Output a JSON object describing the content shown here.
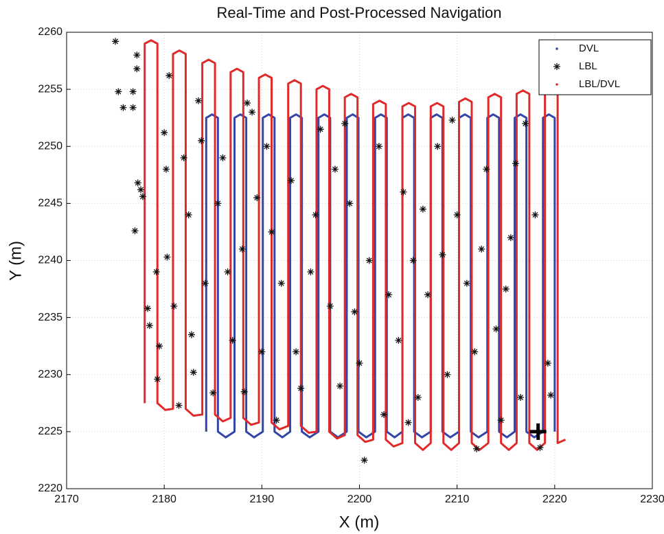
{
  "chart_data": {
    "type": "line",
    "title": "Real-Time and Post-Processed Navigation",
    "x_label": "X (m)",
    "y_label": "Y (m)",
    "xlim": [
      2170,
      2230
    ],
    "ylim": [
      2220,
      2260
    ],
    "xticks": [
      2170,
      2180,
      2190,
      2200,
      2210,
      2220,
      2230
    ],
    "yticks": [
      2220,
      2225,
      2230,
      2235,
      2240,
      2245,
      2250,
      2255,
      2260
    ],
    "grid": true,
    "legend_position": "top-right",
    "series": [
      {
        "name": "DVL",
        "type": "line",
        "marker": "dot",
        "color": "#3346a8",
        "x": [
          2184.3,
          2184.3,
          2184.9,
          2185.5,
          2185.5,
          2186.3,
          2187.2,
          2187.2,
          2187.8,
          2188.4,
          2188.4,
          2189.2,
          2190.1,
          2190.1,
          2190.7,
          2191.3,
          2191.3,
          2192.1,
          2192.9,
          2192.9,
          2193.5,
          2194.1,
          2194.1,
          2194.9,
          2195.8,
          2195.8,
          2196.4,
          2197,
          2197,
          2197.8,
          2198.7,
          2198.7,
          2199.3,
          2199.9,
          2199.9,
          2200.7,
          2201.6,
          2201.6,
          2202.2,
          2202.8,
          2202.8,
          2203.6,
          2204.4,
          2204.4,
          2205,
          2205.6,
          2205.6,
          2206.4,
          2207.3,
          2207.3,
          2207.9,
          2208.5,
          2208.5,
          2209.3,
          2210.2,
          2210.2,
          2210.8,
          2211.4,
          2211.4,
          2212.2,
          2213.1,
          2213.1,
          2213.7,
          2214.3,
          2214.3,
          2215.1,
          2215.9,
          2215.9,
          2216.5,
          2217.1,
          2217.1,
          2217.9,
          2218.8,
          2218.8,
          2219.4,
          2220,
          2220
        ],
        "values": [
          2225,
          2252.5,
          2252.8,
          2252.5,
          2225,
          2224.5,
          2225,
          2252.5,
          2252.8,
          2252.5,
          2225,
          2224.5,
          2225,
          2252.5,
          2252.8,
          2252.5,
          2225,
          2224.5,
          2225,
          2252.5,
          2252.8,
          2252.5,
          2225,
          2224.5,
          2225,
          2252.5,
          2252.8,
          2252.5,
          2225,
          2224.5,
          2225,
          2252.5,
          2252.8,
          2252.5,
          2225,
          2224.5,
          2225,
          2252.5,
          2252.8,
          2252.5,
          2225,
          2224.5,
          2225,
          2252.5,
          2252.8,
          2252.5,
          2225,
          2224.5,
          2225,
          2252.5,
          2252.8,
          2252.5,
          2225,
          2224.5,
          2225,
          2252.5,
          2252.8,
          2252.5,
          2225,
          2224.5,
          2225,
          2252.5,
          2252.8,
          2252.5,
          2225,
          2224.5,
          2225,
          2252.5,
          2252.8,
          2252.5,
          2225,
          2224.5,
          2225,
          2252.5,
          2252.8,
          2252.5,
          2225
        ]
      },
      {
        "name": "LBL",
        "type": "scatter",
        "marker": "star",
        "color": "#111111",
        "x": [
          2175,
          2175.3,
          2175.8,
          2176.8,
          2176.8,
          2177.2,
          2177.2,
          2177.3,
          2177.6,
          2177.8,
          2177,
          2178.3,
          2178.5,
          2179.2,
          2179.5,
          2179.3,
          2180.3,
          2180,
          2180.5,
          2180.2,
          2181.5,
          2182.5,
          2183.5,
          2183,
          2184.2,
          2185,
          2186,
          2188.5,
          2189,
          2188,
          2190,
          2191.5,
          2193,
          2195.5,
          2197,
          2198,
          2200.5,
          2201,
          2202,
          2204,
          2205,
          2206.5,
          2208,
          2209,
          2211,
          2212,
          2213,
          2214,
          2215.5,
          2216.5,
          2217,
          2218.5,
          2219.6,
          2219.3,
          2218,
          2203,
          2196,
          2194,
          2187,
          2185.5,
          2199,
          2207,
          2210,
          2214.5,
          2192,
          2190.5,
          2183.8,
          2181,
          2182,
          2206,
          2200,
          2197.5,
          2212.5,
          2216,
          2204.5,
          2186.5,
          2193.5,
          2189.5,
          2202.5,
          2208.5,
          2195,
          2182.8,
          2191,
          2198.5,
          2209.5,
          2211.8,
          2215,
          2205.5,
          2199.5,
          2188.2
        ],
        "values": [
          2259.2,
          2254.8,
          2253.4,
          2253.4,
          2254.8,
          2258,
          2256.8,
          2246.8,
          2246.2,
          2245.6,
          2242.6,
          2235.8,
          2234.3,
          2239,
          2232.5,
          2229.6,
          2240.3,
          2251.2,
          2256.2,
          2248,
          2227.3,
          2244,
          2254,
          2230.2,
          2238,
          2228.4,
          2249,
          2253.8,
          2253,
          2241,
          2232,
          2226,
          2247,
          2244,
          2236,
          2229,
          2222.5,
          2240,
          2250,
          2233,
          2225.8,
          2244.5,
          2250,
          2230,
          2238,
          2223.5,
          2248,
          2234,
          2242,
          2228,
          2252,
          2223.6,
          2228.2,
          2231,
          2244,
          2237,
          2251.5,
          2228.8,
          2233,
          2245,
          2245,
          2237,
          2244,
          2226,
          2238,
          2250,
          2250.5,
          2236,
          2249,
          2228,
          2231,
          2248,
          2241,
          2248.5,
          2246,
          2239,
          2232,
          2245.5,
          2226.5,
          2240.5,
          2239,
          2233.5,
          2242.5,
          2252,
          2252.3,
          2232,
          2237.5,
          2240,
          2235.5,
          2228.5
        ]
      },
      {
        "name": "LBL/DVL",
        "type": "line",
        "marker": "dot",
        "color": "#e02a2a",
        "x": [
          2178,
          2178,
          2178.65,
          2179.3,
          2179.3,
          2180.1,
          2180.9,
          2180.9,
          2181.55,
          2182.2,
          2182.2,
          2183,
          2183.9,
          2183.9,
          2184.55,
          2185.2,
          2185.2,
          2186,
          2186.8,
          2186.8,
          2187.45,
          2188.1,
          2188.1,
          2188.9,
          2189.7,
          2189.7,
          2190.35,
          2191,
          2191,
          2191.8,
          2192.7,
          2192.7,
          2193.35,
          2194,
          2194,
          2194.8,
          2195.6,
          2195.6,
          2196.25,
          2196.9,
          2196.9,
          2197.7,
          2198.5,
          2198.5,
          2199.15,
          2199.8,
          2199.8,
          2200.6,
          2201.4,
          2201.4,
          2202.05,
          2202.7,
          2202.7,
          2203.5,
          2204.4,
          2204.4,
          2205.05,
          2205.7,
          2205.7,
          2206.5,
          2207.3,
          2207.3,
          2207.95,
          2208.6,
          2208.6,
          2209.4,
          2210.2,
          2210.2,
          2210.85,
          2211.5,
          2211.5,
          2212.3,
          2213.2,
          2213.2,
          2213.85,
          2214.5,
          2214.5,
          2215.3,
          2216.1,
          2216.1,
          2216.75,
          2217.4,
          2217.4,
          2218.2,
          2219,
          2219,
          2219.65,
          2220.3,
          2220.3,
          2221.1
        ],
        "values": [
          2227.5,
          2259,
          2259.3,
          2259,
          2227.5,
          2226.9,
          2227,
          2258.1,
          2258.4,
          2258.1,
          2227,
          2226.4,
          2226.5,
          2257.3,
          2257.6,
          2257.3,
          2226.5,
          2225.9,
          2226.2,
          2256.5,
          2256.8,
          2256.5,
          2226.2,
          2225.6,
          2225.8,
          2256,
          2256.3,
          2256,
          2225.8,
          2225.2,
          2225.5,
          2255.5,
          2255.8,
          2255.5,
          2225.5,
          2224.9,
          2225,
          2255,
          2255.3,
          2255,
          2225,
          2224.4,
          2224.7,
          2254.3,
          2254.6,
          2254.3,
          2224.7,
          2224.1,
          2224.3,
          2253.7,
          2254,
          2253.7,
          2224.3,
          2223.7,
          2224,
          2253.5,
          2253.8,
          2253.5,
          2224,
          2223.4,
          2224,
          2253.5,
          2253.8,
          2253.5,
          2224,
          2223.4,
          2224,
          2253.9,
          2254.2,
          2253.9,
          2224,
          2223.4,
          2224,
          2254.3,
          2254.6,
          2254.3,
          2224,
          2223.4,
          2224,
          2254.6,
          2254.9,
          2254.6,
          2224,
          2223.4,
          2224,
          2254.7,
          2255,
          2254.7,
          2224,
          2224.3
        ]
      }
    ],
    "highlight_point": {
      "x": 2218.3,
      "y": 2225,
      "color": "#000000"
    }
  }
}
